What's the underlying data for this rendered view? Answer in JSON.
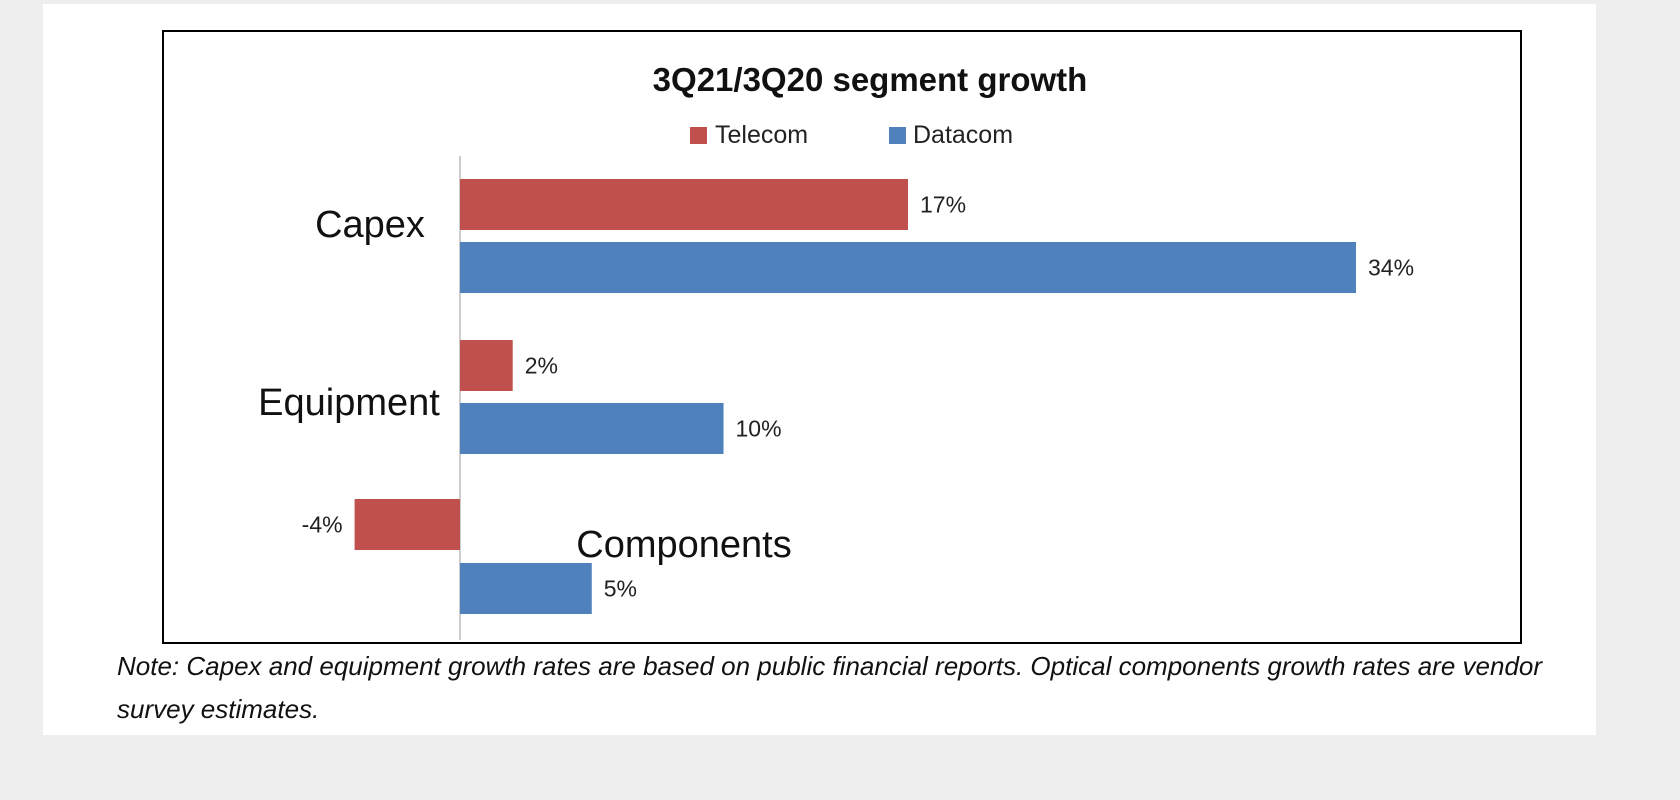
{
  "chart_data": {
    "type": "bar",
    "orientation": "horizontal",
    "title": "3Q21/3Q20 segment growth",
    "categories": [
      "Capex",
      "Equipment",
      "Components"
    ],
    "series": [
      {
        "name": "Telecom",
        "color": "#c0504d",
        "values": [
          17,
          2,
          -4
        ],
        "labels": [
          "17%",
          "2%",
          "-4%"
        ]
      },
      {
        "name": "Datacom",
        "color": "#4f81bd",
        "values": [
          34,
          10,
          5
        ],
        "labels": [
          "34%",
          "10%",
          "5%"
        ]
      }
    ],
    "legend_position": "top",
    "grid": false
  },
  "note": "Note: Capex and equipment growth rates are based on public financial reports. Optical components growth rates are vendor survey estimates."
}
